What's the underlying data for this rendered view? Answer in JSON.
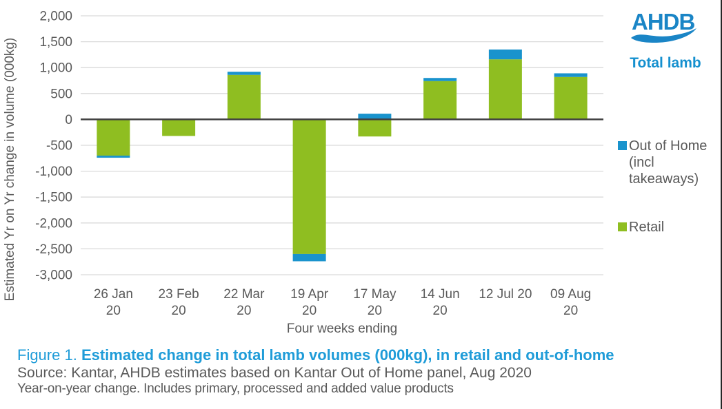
{
  "header": {
    "logo_text": "AHDB",
    "logo_color": "#1A85C6",
    "title": "Total lamb",
    "title_color": "#1590CF"
  },
  "legend": {
    "items": [
      {
        "label": "Out of Home (incl takeaways)",
        "color": "#1993CD"
      },
      {
        "label": "Retail",
        "color": "#8FBE21"
      }
    ]
  },
  "chart_data": {
    "type": "bar",
    "stacked": true,
    "categories": [
      "26 Jan 20",
      "23 Feb 20",
      "22 Mar 20",
      "19 Apr 20",
      "17 May 20",
      "14 Jun 20",
      "12 Jul 20",
      "09 Aug 20"
    ],
    "category_label_lines": [
      [
        "26 Jan",
        "20"
      ],
      [
        "23 Feb",
        "20"
      ],
      [
        "22 Mar",
        "20"
      ],
      [
        "19 Apr",
        "20"
      ],
      [
        "17 May",
        "20"
      ],
      [
        "14 Jun",
        "20"
      ],
      [
        "12 Jul 20"
      ],
      [
        "09 Aug",
        "20"
      ]
    ],
    "series": [
      {
        "name": "Out of Home (incl takeaways)",
        "color": "#1993CD",
        "values": [
          -40,
          0,
          60,
          -140,
          110,
          60,
          190,
          70
        ]
      },
      {
        "name": "Retail",
        "color": "#8FBE21",
        "values": [
          -700,
          -320,
          860,
          -2600,
          -330,
          740,
          1160,
          820
        ]
      }
    ],
    "stack_totals": [
      -740,
      -320,
      920,
      -2740,
      -220,
      800,
      1350,
      890
    ],
    "xlabel": "Four weeks ending",
    "ylabel": "Estimated Yr on Yr change in volume (000kg)",
    "ylim": [
      -3000,
      2000
    ],
    "ytick_step": 500,
    "y_ticks": [
      {
        "value": 2000,
        "label": "2,000"
      },
      {
        "value": 1500,
        "label": "1,500"
      },
      {
        "value": 1000,
        "label": "1,000"
      },
      {
        "value": 500,
        "label": "500"
      },
      {
        "value": 0,
        "label": "0"
      },
      {
        "value": -500,
        "label": "-500"
      },
      {
        "value": -1000,
        "label": "-1,000"
      },
      {
        "value": -1500,
        "label": "-1,500"
      },
      {
        "value": -2000,
        "label": "-2,000"
      },
      {
        "value": -2500,
        "label": "-2,500"
      },
      {
        "value": -3000,
        "label": "-3,000"
      }
    ],
    "grid": true,
    "legend_position": "right",
    "colors": {
      "grid_line": "#D9D9D9",
      "zero_line": "#404040",
      "axis_text": "#595959"
    }
  },
  "caption": {
    "figure_label": "Figure 1. ",
    "title": "Estimated change in total lamb volumes (000kg), in retail and out-of-home",
    "source": "Source: Kantar, AHDB estimates based on Kantar Out of Home panel, Aug 2020",
    "note": "Year-on-year change. Includes primary, processed and added value products"
  }
}
